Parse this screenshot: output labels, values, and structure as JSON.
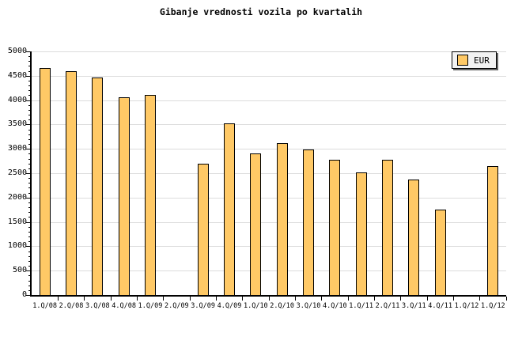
{
  "title": "Gibanje vrednosti vozila po kvartalih",
  "legend": {
    "label": "EUR"
  },
  "colors": {
    "background": "#ffffff",
    "bar_fill": "#FFC966",
    "bar_border": "#000000",
    "grid": "#dcdcdc",
    "axis": "#000000",
    "legend_bg": "#f2f2f2",
    "legend_border": "#000000",
    "legend_shadow": "#666666"
  },
  "y_axis": {
    "tick_labels": [
      "0",
      "500",
      "1000",
      "1500",
      "2000",
      "2500",
      "3000",
      "3500",
      "4000",
      "4500",
      "5000"
    ]
  },
  "chart_data": {
    "type": "bar",
    "title": "Gibanje vrednosti vozila po kvartalih",
    "categories": [
      "1.Q/08",
      "2.Q/08",
      "3.Q/08",
      "4.Q/08",
      "1.Q/09",
      "2.Q/09",
      "3.Q/09",
      "4.Q/09",
      "1.Q/10",
      "2.Q/10",
      "3.Q/10",
      "4.Q/10",
      "1.Q/11",
      "2.Q/11",
      "3.Q/11",
      "4.Q/11",
      "1.Q/12",
      "1.Q/12"
    ],
    "series": [
      {
        "name": "EUR",
        "values": [
          4660,
          4590,
          4460,
          4060,
          4110,
          null,
          2700,
          3530,
          2900,
          3120,
          2990,
          2780,
          2520,
          2780,
          2370,
          1760,
          null,
          2650
        ]
      }
    ],
    "xlabel": "",
    "ylabel": "",
    "ylim": [
      0,
      5000
    ],
    "ytick_major_step": 500,
    "ytick_minor_step": 100,
    "grid": true,
    "legend_position": "top-right"
  }
}
